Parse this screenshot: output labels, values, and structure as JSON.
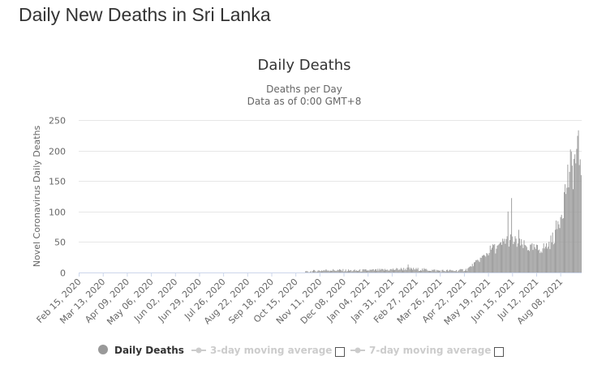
{
  "page": {
    "title": "Daily New Deaths in Sri Lanka"
  },
  "chart_data": {
    "type": "bar",
    "title": "Daily Deaths",
    "subtitle_line1": "Deaths per Day",
    "subtitle_line2": "Data as of 0:00 GMT+8",
    "ylabel": "Novel Coronavirus Daily Deaths",
    "xlabel": "",
    "ylim": [
      0,
      250
    ],
    "y_ticks": [
      "0",
      "50",
      "100",
      "150",
      "200",
      "250"
    ],
    "grid": true,
    "legend_placement": "bottom",
    "bar_color": "#999999",
    "x_start_date": "2020-02-15",
    "x_end_date": "2021-08-31",
    "x_ticks": [
      {
        "label": "Feb 15, 2020",
        "date": "2020-02-15"
      },
      {
        "label": "Mar 13, 2020",
        "date": "2020-03-13"
      },
      {
        "label": "Apr 09, 2020",
        "date": "2020-04-09"
      },
      {
        "label": "May 06, 2020",
        "date": "2020-05-06"
      },
      {
        "label": "Jun 02, 2020",
        "date": "2020-06-02"
      },
      {
        "label": "Jun 29, 2020",
        "date": "2020-06-29"
      },
      {
        "label": "Jul 26, 2020",
        "date": "2020-07-26"
      },
      {
        "label": "Aug 22, 2020",
        "date": "2020-08-22"
      },
      {
        "label": "Sep 18, 2020",
        "date": "2020-09-18"
      },
      {
        "label": "Oct 15, 2020",
        "date": "2020-10-15"
      },
      {
        "label": "Nov 11, 2020",
        "date": "2020-11-11"
      },
      {
        "label": "Dec 08, 2020",
        "date": "2020-12-08"
      },
      {
        "label": "Jan 04, 2021",
        "date": "2021-01-04"
      },
      {
        "label": "Jan 31, 2021",
        "date": "2021-01-31"
      },
      {
        "label": "Feb 27, 2021",
        "date": "2021-02-27"
      },
      {
        "label": "Mar 26, 2021",
        "date": "2021-03-26"
      },
      {
        "label": "Apr 22, 2021",
        "date": "2021-04-22"
      },
      {
        "label": "May 19, 2021",
        "date": "2021-05-19"
      },
      {
        "label": "Jun 15, 2021",
        "date": "2021-06-15"
      },
      {
        "label": "Jul 12, 2021",
        "date": "2021-07-12"
      },
      {
        "label": "Aug 08, 2021",
        "date": "2021-08-08"
      }
    ],
    "series_breakpoints": [
      {
        "date": "2020-02-15",
        "value": 0
      },
      {
        "date": "2020-10-24",
        "value": 0
      },
      {
        "date": "2020-11-01",
        "value": 2
      },
      {
        "date": "2020-11-20",
        "value": 4
      },
      {
        "date": "2020-12-20",
        "value": 3
      },
      {
        "date": "2021-01-20",
        "value": 4
      },
      {
        "date": "2021-02-15",
        "value": 6
      },
      {
        "date": "2021-03-05",
        "value": 5
      },
      {
        "date": "2021-03-25",
        "value": 3
      },
      {
        "date": "2021-04-15",
        "value": 3
      },
      {
        "date": "2021-04-25",
        "value": 5
      },
      {
        "date": "2021-05-01",
        "value": 12
      },
      {
        "date": "2021-05-08",
        "value": 20
      },
      {
        "date": "2021-05-15",
        "value": 28
      },
      {
        "date": "2021-05-22",
        "value": 38
      },
      {
        "date": "2021-06-01",
        "value": 42
      },
      {
        "date": "2021-06-08",
        "value": 55
      },
      {
        "date": "2021-06-15",
        "value": 52
      },
      {
        "date": "2021-06-25",
        "value": 45
      },
      {
        "date": "2021-07-05",
        "value": 40
      },
      {
        "date": "2021-07-15",
        "value": 38
      },
      {
        "date": "2021-07-25",
        "value": 44
      },
      {
        "date": "2021-08-01",
        "value": 60
      },
      {
        "date": "2021-08-06",
        "value": 85
      },
      {
        "date": "2021-08-11",
        "value": 115
      },
      {
        "date": "2021-08-16",
        "value": 155
      },
      {
        "date": "2021-08-22",
        "value": 175
      },
      {
        "date": "2021-08-26",
        "value": 190
      },
      {
        "date": "2021-08-31",
        "value": 195
      }
    ],
    "spikes": [
      {
        "date": "2021-06-10",
        "value": 100
      },
      {
        "date": "2021-06-14",
        "value": 122
      },
      {
        "date": "2021-06-22",
        "value": 70
      },
      {
        "date": "2021-05-25",
        "value": 45
      },
      {
        "date": "2021-02-18",
        "value": 13
      }
    ],
    "legend": [
      {
        "label": "Daily Deaths",
        "color": "#999999",
        "active": true
      },
      {
        "label": "3-day moving average",
        "color": "#cccccc",
        "active": false
      },
      {
        "label": "7-day moving average",
        "color": "#cccccc",
        "active": false
      }
    ]
  }
}
